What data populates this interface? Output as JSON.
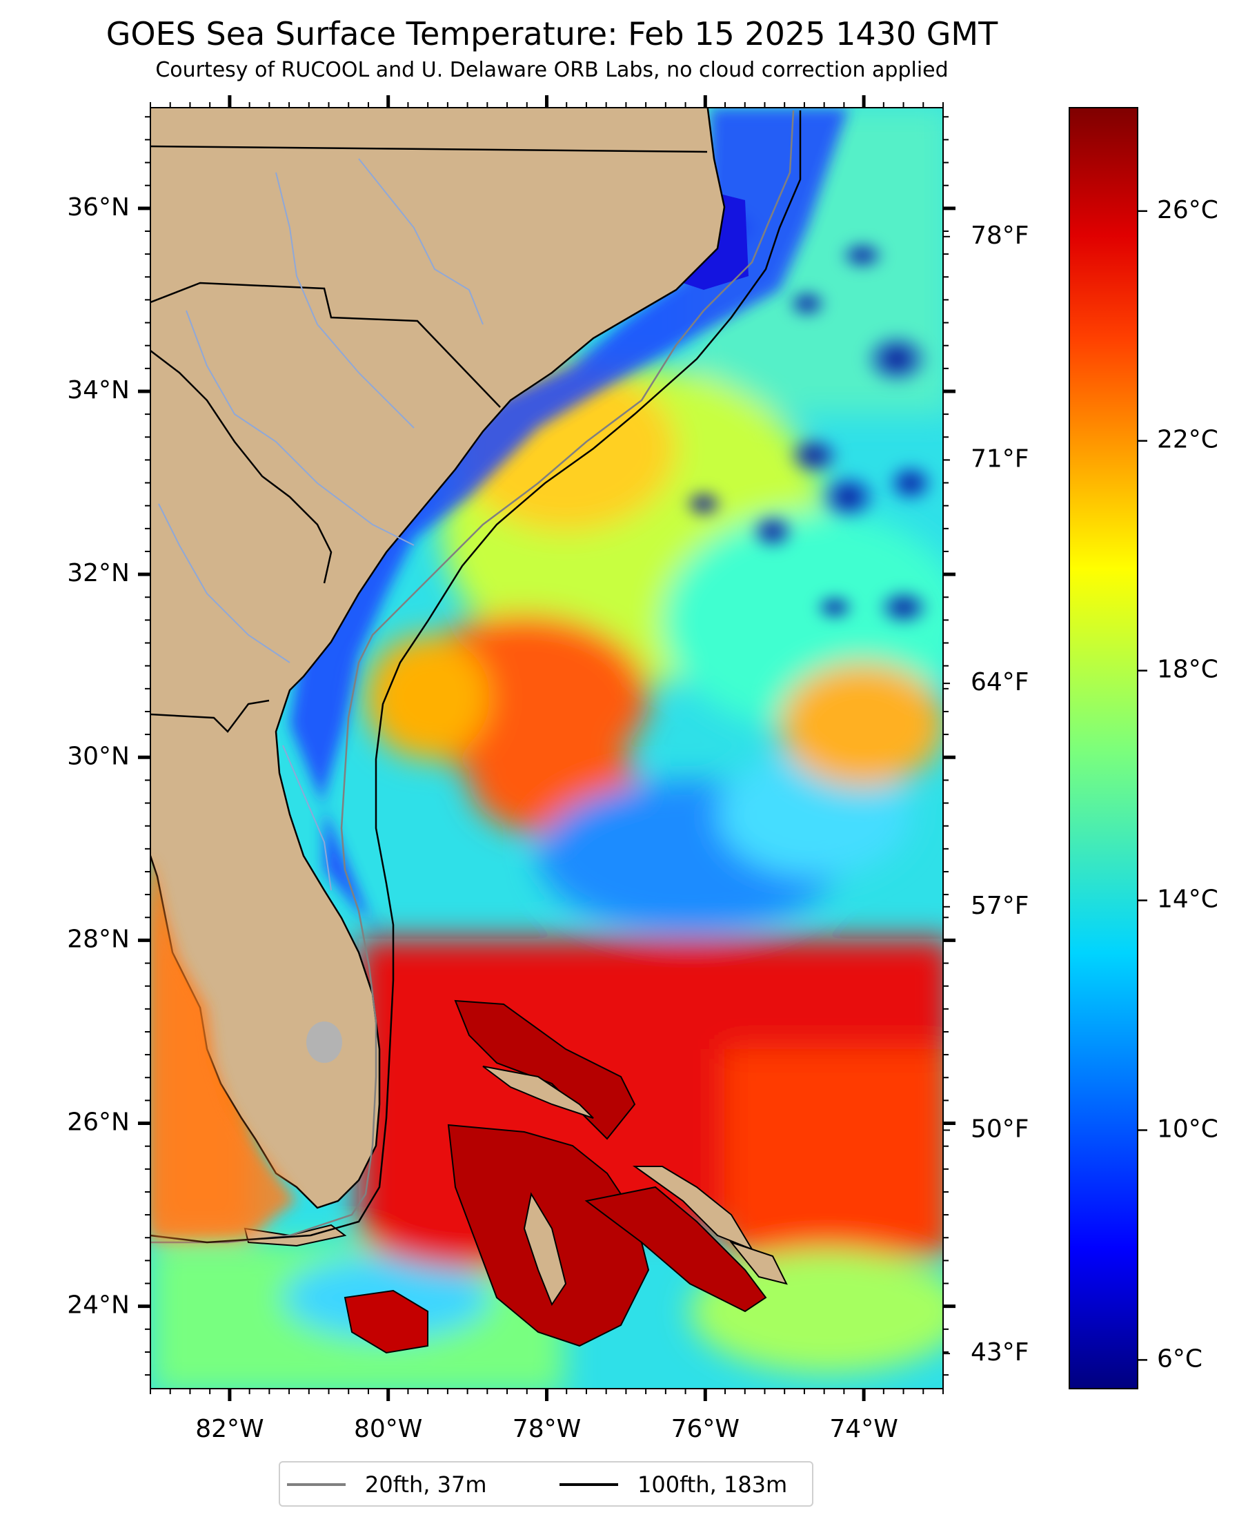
{
  "title": "GOES Sea Surface Temperature: Feb 15 2025 1430 GMT",
  "subtitle": "Courtesy of RUCOOL and U. Delaware ORB Labs, no cloud correction applied",
  "map": {
    "lon_range": [
      -83,
      -73
    ],
    "lat_range": [
      23.1,
      37.1
    ],
    "lat_ticks": [
      {
        "value": 36,
        "label": "36°N"
      },
      {
        "value": 34,
        "label": "34°N"
      },
      {
        "value": 32,
        "label": "32°N"
      },
      {
        "value": 30,
        "label": "30°N"
      },
      {
        "value": 28,
        "label": "28°N"
      },
      {
        "value": 26,
        "label": "26°N"
      },
      {
        "value": 24,
        "label": "24°N"
      }
    ],
    "lon_ticks": [
      {
        "value": -82,
        "label": "82°W"
      },
      {
        "value": -80,
        "label": "80°W"
      },
      {
        "value": -78,
        "label": "78°W"
      },
      {
        "value": -76,
        "label": "76°W"
      },
      {
        "value": -74,
        "label": "74°W"
      }
    ],
    "fahrenheit_ticks": [
      {
        "value": 78,
        "label": "78°F"
      },
      {
        "value": 71,
        "label": "71°F"
      },
      {
        "value": 64,
        "label": "64°F"
      },
      {
        "value": 57,
        "label": "57°F"
      },
      {
        "value": 50,
        "label": "50°F"
      },
      {
        "value": 43,
        "label": "43°F"
      }
    ],
    "colors": {
      "land": "#d2b48c",
      "coast": "#000000",
      "rivers": "#8fa8d8",
      "lake": "#b3b3b3",
      "isobath_20fth": "#808080",
      "isobath_100fth": "#000000"
    }
  },
  "colorbar": {
    "range_c": [
      5.5,
      27.8
    ],
    "ticks": [
      {
        "value": 26,
        "label": "26°C"
      },
      {
        "value": 22,
        "label": "22°C"
      },
      {
        "value": 18,
        "label": "18°C"
      },
      {
        "value": 14,
        "label": "14°C"
      },
      {
        "value": 10,
        "label": "10°C"
      },
      {
        "value": 6,
        "label": "6°C"
      }
    ],
    "colormap": [
      "#00007f",
      "#0000ff",
      "#007fff",
      "#00ffff",
      "#7fff7f",
      "#ffff00",
      "#ff7f00",
      "#ff0000",
      "#7f0000"
    ]
  },
  "legend": {
    "items": [
      {
        "label": "20fth, 37m",
        "color": "#808080"
      },
      {
        "label": "100fth, 183m",
        "color": "#000000"
      }
    ]
  }
}
